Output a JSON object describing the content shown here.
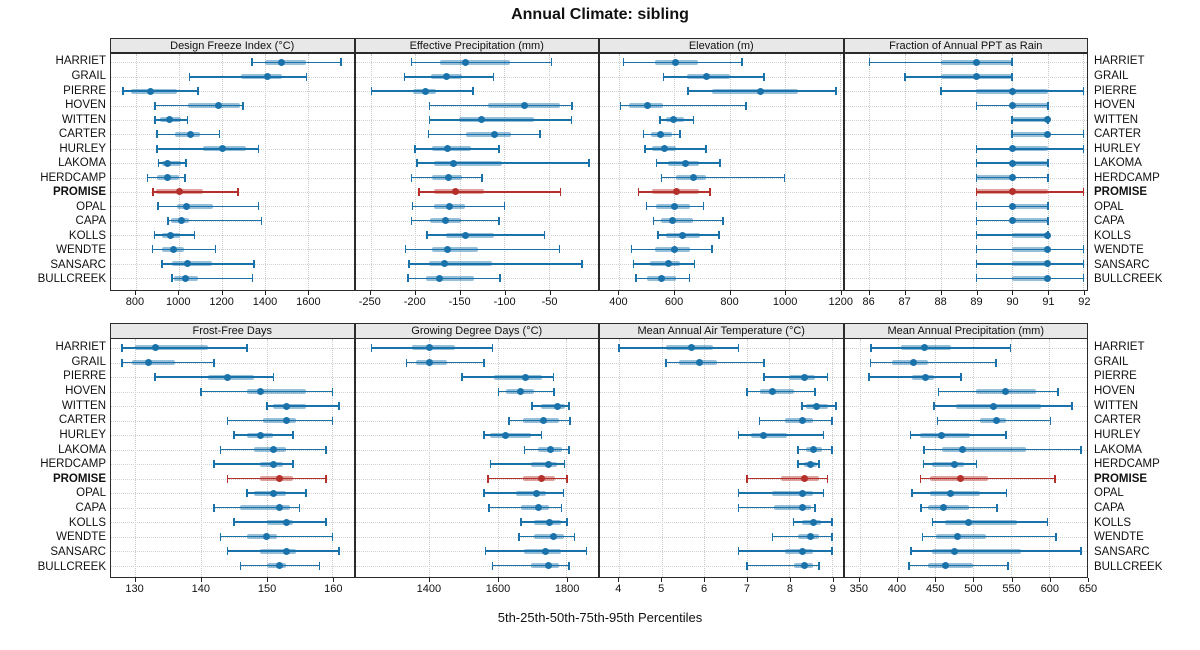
{
  "chart_data": {
    "type": "dot-interval",
    "title": "Annual Climate: sibling",
    "caption": "5th-25th-50th-75th-95th Percentiles",
    "percentile_labels": [
      "5th",
      "25th",
      "50th",
      "75th",
      "95th"
    ],
    "legend_position": "none",
    "grid": "dotted",
    "categories": [
      "HARRIET",
      "GRAIL",
      "PIERRE",
      "HOVEN",
      "WITTEN",
      "CARTER",
      "HURLEY",
      "LAKOMA",
      "HERDCAMP",
      "PROMISE",
      "OPAL",
      "CAPA",
      "KOLLS",
      "WENDTE",
      "SANSARC",
      "BULLCREEK"
    ],
    "highlight_category": "PROMISE",
    "colors": {
      "series": "#1a72ab",
      "highlight": "#b5302a",
      "band_alpha": 0.45,
      "grid": "#c9c9c9",
      "header_bg": "#e8e8e8",
      "border": "#2b2b2b"
    },
    "panels": [
      {
        "title": "Design Freeze Index (°C)",
        "row": 0,
        "col": 0,
        "domain": [
          685,
          1813
        ],
        "ticks": [
          800,
          1000,
          1200,
          1400,
          1600
        ],
        "values": [
          [
            1340,
            1400,
            1480,
            1590,
            1755
          ],
          [
            1050,
            1290,
            1415,
            1480,
            1595
          ],
          [
            740,
            780,
            870,
            990,
            1090
          ],
          [
            890,
            1045,
            1185,
            1285,
            1300
          ],
          [
            890,
            915,
            957,
            1010,
            1040
          ],
          [
            900,
            985,
            1057,
            1100,
            1190
          ],
          [
            900,
            1115,
            1205,
            1315,
            1370
          ],
          [
            905,
            920,
            946,
            1010,
            1035
          ],
          [
            855,
            900,
            946,
            1000,
            1030
          ],
          [
            880,
            895,
            1005,
            1115,
            1275
          ],
          [
            903,
            990,
            1036,
            1160,
            1370
          ],
          [
            950,
            962,
            1012,
            1046,
            1385
          ],
          [
            888,
            923,
            962,
            1008,
            1074
          ],
          [
            877,
            923,
            974,
            1023,
            1170
          ],
          [
            923,
            969,
            1039,
            1154,
            1350
          ],
          [
            969,
            977,
            1031,
            1092,
            1344
          ]
        ]
      },
      {
        "title": "Effective Precipitation (mm)",
        "row": 0,
        "col": 1,
        "domain": [
          -267,
          5
        ],
        "ticks": [
          -250,
          -200,
          -150,
          -100,
          -50
        ],
        "values": [
          [
            -204,
            -172,
            -144,
            -94,
            -47
          ],
          [
            -212,
            -182,
            -165,
            -147,
            -112
          ],
          [
            -249,
            -203,
            -189,
            -177,
            -135
          ],
          [
            -184,
            -118,
            -78,
            -38,
            -24
          ],
          [
            -184,
            -151,
            -126,
            -67,
            -25
          ],
          [
            -185,
            -143,
            -111,
            -93,
            -60
          ],
          [
            -200,
            -181,
            -164,
            -138,
            -106
          ],
          [
            -198,
            -179,
            -157,
            -103,
            -5
          ],
          [
            -204,
            -181,
            -163,
            -148,
            -125
          ],
          [
            -196,
            -179,
            -155,
            -123,
            -37
          ],
          [
            -203,
            -179,
            -162,
            -144,
            -100
          ],
          [
            -204,
            -183,
            -166,
            -149,
            -106
          ],
          [
            -187,
            -166,
            -144,
            -112,
            -55
          ],
          [
            -211,
            -181,
            -164,
            -130,
            -38
          ],
          [
            -207,
            -185,
            -167,
            -114,
            -13
          ],
          [
            -208,
            -188,
            -173,
            -134,
            -105
          ]
        ]
      },
      {
        "title": "Elevation (m)",
        "row": 0,
        "col": 2,
        "domain": [
          330,
          1210
        ],
        "ticks": [
          400,
          600,
          800,
          1000,
          1200
        ],
        "values": [
          [
            415,
            530,
            605,
            685,
            845
          ],
          [
            560,
            645,
            715,
            800,
            925
          ],
          [
            650,
            737,
            913,
            1049,
            1187
          ],
          [
            405,
            436,
            502,
            560,
            860
          ],
          [
            548,
            571,
            596,
            634,
            670
          ],
          [
            488,
            514,
            550,
            592,
            620
          ],
          [
            493,
            517,
            565,
            607,
            715
          ],
          [
            535,
            575,
            640,
            690,
            765
          ],
          [
            553,
            607,
            670,
            715,
            1000
          ],
          [
            470,
            520,
            608,
            690,
            730
          ],
          [
            499,
            535,
            600,
            655,
            706
          ],
          [
            525,
            553,
            593,
            667,
            776
          ],
          [
            541,
            571,
            629,
            692,
            761
          ],
          [
            445,
            529,
            600,
            655,
            737
          ],
          [
            451,
            511,
            577,
            619,
            673
          ],
          [
            460,
            499,
            553,
            605,
            655
          ]
        ]
      },
      {
        "title": "Fraction of Annual PPT as Rain",
        "row": 0,
        "col": 3,
        "domain": [
          85.3,
          92.1
        ],
        "ticks": [
          86,
          87,
          88,
          89,
          90,
          91,
          92
        ],
        "values": [
          [
            86,
            88,
            89,
            90,
            90
          ],
          [
            87,
            88,
            89,
            90,
            90
          ],
          [
            88,
            89,
            90,
            91,
            92
          ],
          [
            89,
            90,
            90,
            91,
            91
          ],
          [
            90,
            90,
            91,
            91,
            91
          ],
          [
            90,
            90,
            91,
            91,
            92
          ],
          [
            89,
            90,
            90,
            91,
            92
          ],
          [
            89,
            90,
            90,
            91,
            91
          ],
          [
            89,
            89,
            90,
            90,
            91
          ],
          [
            89,
            89,
            90,
            91,
            92
          ],
          [
            89,
            90,
            90,
            91,
            91
          ],
          [
            89,
            90,
            90,
            91,
            91
          ],
          [
            89,
            90,
            91,
            91,
            91
          ],
          [
            89,
            90,
            91,
            91,
            92
          ],
          [
            89,
            90,
            91,
            91,
            92
          ],
          [
            89,
            90,
            91,
            91,
            92
          ]
        ]
      },
      {
        "title": "Frost-Free Days",
        "row": 1,
        "col": 0,
        "domain": [
          126.3,
          163.2
        ],
        "ticks": [
          130,
          140,
          150,
          160
        ],
        "values": [
          [
            128,
            130,
            133,
            141,
            147
          ],
          [
            128,
            129.5,
            132,
            136,
            142
          ],
          [
            133,
            141,
            144,
            148,
            151
          ],
          [
            140,
            147,
            149,
            156,
            160
          ],
          [
            150,
            151,
            153,
            156,
            161
          ],
          [
            144,
            149.5,
            153,
            154.5,
            160
          ],
          [
            145,
            147,
            149,
            151,
            154
          ],
          [
            143,
            148,
            151,
            153,
            159
          ],
          [
            142,
            149,
            151,
            152.5,
            154
          ],
          [
            144,
            149,
            152,
            154,
            159
          ],
          [
            147,
            148,
            151,
            153,
            156
          ],
          [
            142,
            146,
            152,
            153.5,
            155
          ],
          [
            145,
            150,
            153,
            154,
            159
          ],
          [
            143,
            147,
            150,
            151.5,
            160
          ],
          [
            144,
            149,
            153,
            154.5,
            161
          ],
          [
            146,
            150,
            152,
            153,
            158
          ]
        ]
      },
      {
        "title": "Growing Degree Days (°C)",
        "row": 1,
        "col": 1,
        "domain": [
          1185,
          1892
        ],
        "ticks": [
          1400,
          1600,
          1800
        ],
        "values": [
          [
            1232,
            1350,
            1400,
            1475,
            1584
          ],
          [
            1333,
            1360,
            1400,
            1451,
            1560
          ],
          [
            1496,
            1589,
            1680,
            1728,
            1762
          ],
          [
            1602,
            1624,
            1666,
            1706,
            1764
          ],
          [
            1699,
            1725,
            1773,
            1795,
            1807
          ],
          [
            1632,
            1672,
            1733,
            1778,
            1810
          ],
          [
            1560,
            1576,
            1622,
            1696,
            1728
          ],
          [
            1677,
            1716,
            1754,
            1788,
            1807
          ],
          [
            1578,
            1696,
            1747,
            1773,
            1795
          ],
          [
            1571,
            1672,
            1728,
            1768,
            1802
          ],
          [
            1560,
            1653,
            1714,
            1740,
            1792
          ],
          [
            1574,
            1667,
            1718,
            1749,
            1786
          ],
          [
            1667,
            1706,
            1752,
            1783,
            1802
          ],
          [
            1661,
            1706,
            1762,
            1792,
            1824
          ],
          [
            1564,
            1677,
            1740,
            1783,
            1858
          ],
          [
            1584,
            1696,
            1747,
            1778,
            1807
          ]
        ]
      },
      {
        "title": "Mean Annual Air Temperature (°C)",
        "row": 1,
        "col": 2,
        "domain": [
          3.55,
          9.25
        ],
        "ticks": [
          4,
          5,
          6,
          7,
          8,
          9
        ],
        "values": [
          [
            4.0,
            5.1,
            5.7,
            6.2,
            6.8
          ],
          [
            5.1,
            5.4,
            5.9,
            6.3,
            7.4
          ],
          [
            7.4,
            8.0,
            8.35,
            8.6,
            8.9
          ],
          [
            7.0,
            7.3,
            7.6,
            8.1,
            8.6
          ],
          [
            8.3,
            8.4,
            8.65,
            8.9,
            9.1
          ],
          [
            7.3,
            7.9,
            8.3,
            8.55,
            9.0
          ],
          [
            6.8,
            7.1,
            7.4,
            7.95,
            8.8
          ],
          [
            8.2,
            8.4,
            8.56,
            8.76,
            9.0
          ],
          [
            8.2,
            8.35,
            8.5,
            8.65,
            8.7
          ],
          [
            7.0,
            7.8,
            8.35,
            8.7,
            8.9
          ],
          [
            6.8,
            7.6,
            8.3,
            8.55,
            8.8
          ],
          [
            6.8,
            7.65,
            8.3,
            8.5,
            8.6
          ],
          [
            8.1,
            8.3,
            8.56,
            8.74,
            9.0
          ],
          [
            7.6,
            8.2,
            8.5,
            8.7,
            9.0
          ],
          [
            6.8,
            7.9,
            8.3,
            8.55,
            9.0
          ],
          [
            7.0,
            8.1,
            8.35,
            8.55,
            8.7
          ]
        ]
      },
      {
        "title": "Mean Annual Precipitation (mm)",
        "row": 1,
        "col": 3,
        "domain": [
          330,
          650
        ],
        "ticks": [
          350,
          400,
          450,
          500,
          550,
          600,
          650
        ],
        "values": [
          [
            365,
            404,
            436,
            471,
            549
          ],
          [
            364,
            393,
            421,
            440,
            530
          ],
          [
            362,
            419,
            437,
            448,
            484
          ],
          [
            454,
            504,
            543,
            583,
            612
          ],
          [
            448,
            477,
            527,
            589,
            630
          ],
          [
            453,
            509,
            530,
            543,
            602
          ],
          [
            417,
            430,
            458,
            496,
            543
          ],
          [
            435,
            458,
            486,
            570,
            642
          ],
          [
            434,
            446,
            475,
            488,
            504
          ],
          [
            430,
            443,
            483,
            520,
            608
          ],
          [
            419,
            443,
            470,
            509,
            544
          ],
          [
            431,
            440,
            460,
            494,
            531
          ],
          [
            446,
            462,
            493,
            557,
            598
          ],
          [
            433,
            451,
            479,
            517,
            609
          ],
          [
            418,
            446,
            475,
            563,
            642
          ],
          [
            415,
            440,
            463,
            499,
            546
          ]
        ]
      }
    ]
  }
}
